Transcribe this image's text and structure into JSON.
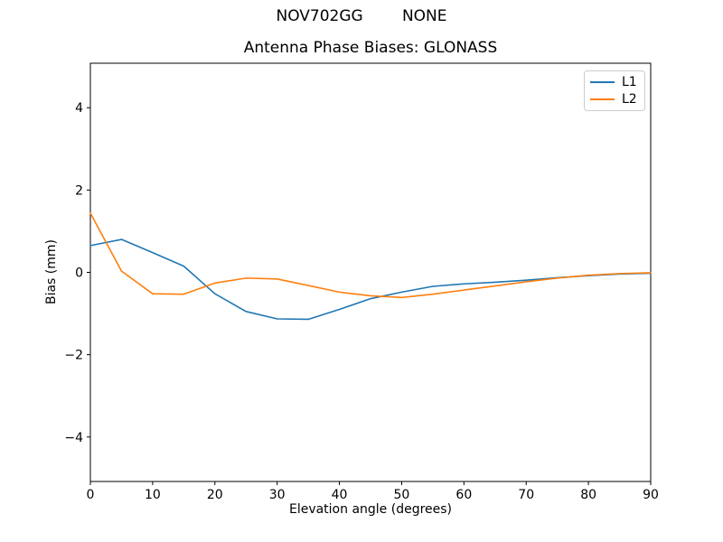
{
  "chart_data": {
    "type": "line",
    "suptitle": "NOV702GG        NONE",
    "title": "Antenna Phase Biases: GLONASS",
    "xlabel": "Elevation angle (degrees)",
    "ylabel": "Bias (mm)",
    "xlim": [
      0,
      90
    ],
    "ylim": [
      -5.08,
      5.08
    ],
    "xticks": [
      0,
      10,
      20,
      30,
      40,
      50,
      60,
      70,
      80,
      90
    ],
    "yticks": [
      -4,
      -2,
      0,
      2,
      4
    ],
    "grid": false,
    "legend_position": "upper right",
    "x": [
      0,
      5,
      10,
      15,
      20,
      25,
      30,
      35,
      40,
      45,
      50,
      55,
      60,
      65,
      70,
      75,
      80,
      85,
      90
    ],
    "series": [
      {
        "name": "L1",
        "color": "#1f77b4",
        "values": [
          0.65,
          0.8,
          0.48,
          0.15,
          -0.52,
          -0.95,
          -1.13,
          -1.14,
          -0.9,
          -0.64,
          -0.48,
          -0.34,
          -0.28,
          -0.24,
          -0.19,
          -0.13,
          -0.08,
          -0.04,
          -0.02
        ]
      },
      {
        "name": "L2",
        "color": "#ff7f0e",
        "values": [
          1.44,
          0.03,
          -0.52,
          -0.53,
          -0.26,
          -0.14,
          -0.16,
          -0.32,
          -0.48,
          -0.57,
          -0.61,
          -0.53,
          -0.43,
          -0.33,
          -0.23,
          -0.14,
          -0.07,
          -0.03,
          -0.01
        ]
      }
    ]
  },
  "axes_colors": {
    "spine": "#000000",
    "tick": "#000000",
    "background": "#ffffff",
    "legend_border": "#cccccc"
  }
}
